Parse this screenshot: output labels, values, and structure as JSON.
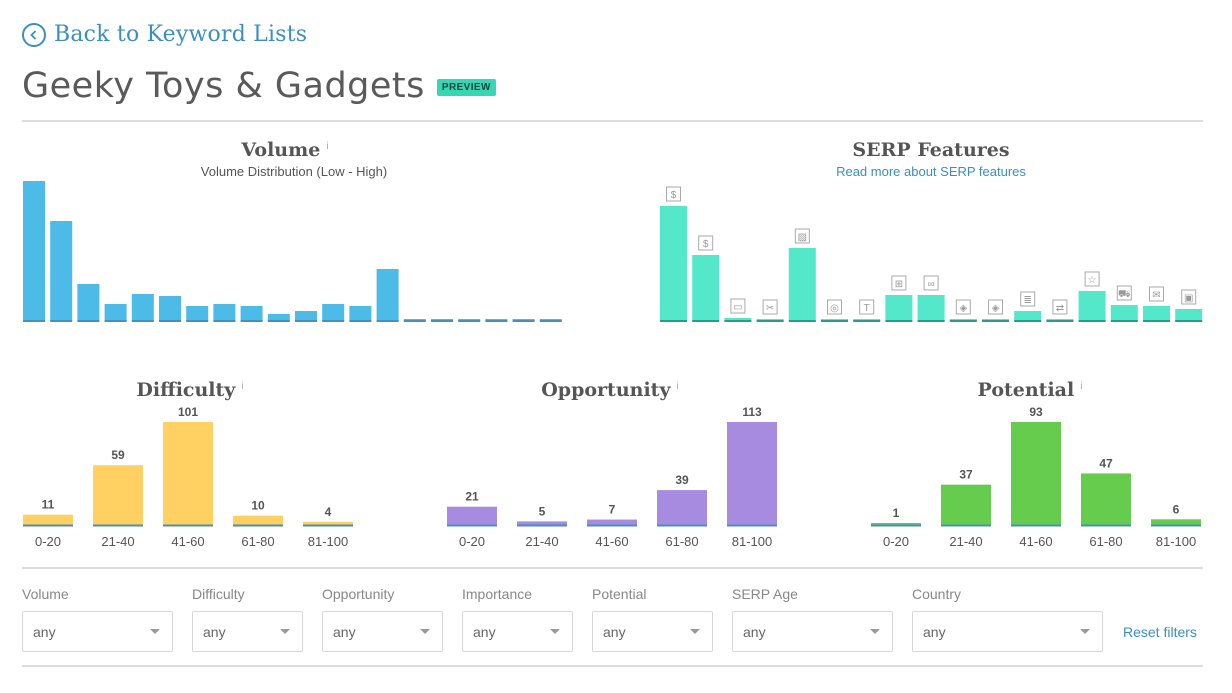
{
  "header": {
    "back_label": "Back to Keyword Lists",
    "title": "Geeky Toys & Gadgets",
    "badge": "PREVIEW"
  },
  "volume": {
    "title": "Volume",
    "info": "i",
    "subtitle": "Volume Distribution (Low - High)"
  },
  "serp": {
    "title": "SERP Features",
    "link": "Read more about SERP features"
  },
  "difficulty": {
    "title": "Difficulty",
    "info": "i"
  },
  "opportunity": {
    "title": "Opportunity",
    "info": "i"
  },
  "potential": {
    "title": "Potential",
    "info": "i"
  },
  "colors": {
    "volume": "#4dbbe8",
    "serp": "#52e8c9",
    "difficulty": "#ffd062",
    "opportunity": "#a78be0",
    "potential": "#66cc4d",
    "baseline": "#4a8fb7"
  },
  "chart_data": [
    {
      "id": "volume",
      "type": "bar",
      "title": "Volume",
      "subtitle": "Volume Distribution (Low - High)",
      "values": [
        140,
        100,
        37,
        17,
        27,
        25,
        15,
        17,
        15,
        7,
        10,
        17,
        15,
        52,
        0,
        0,
        0,
        0,
        0,
        0
      ]
    },
    {
      "id": "serp",
      "type": "bar",
      "title": "SERP Features",
      "values": [
        115,
        66,
        3,
        0,
        73,
        2,
        2,
        26,
        26,
        2,
        2,
        10,
        2,
        30,
        16,
        15,
        12
      ],
      "icons": [
        "dollar-ad-icon",
        "dollar-ad-icon",
        "briefcase-icon",
        "scissors-icon",
        "image-icon",
        "brain-icon",
        "text-box-icon",
        "grid-icon",
        "link-icon",
        "map-pin-icon",
        "map-pin-icon",
        "news-icon",
        "arrows-icon",
        "star-icon",
        "cart-icon",
        "chat-icon",
        "video-icon"
      ]
    },
    {
      "id": "difficulty",
      "type": "bar",
      "title": "Difficulty",
      "categories": [
        "0-20",
        "21-40",
        "41-60",
        "61-80",
        "81-100"
      ],
      "values": [
        11,
        59,
        101,
        10,
        4
      ]
    },
    {
      "id": "opportunity",
      "type": "bar",
      "title": "Opportunity",
      "categories": [
        "0-20",
        "21-40",
        "41-60",
        "61-80",
        "81-100"
      ],
      "values": [
        21,
        5,
        7,
        39,
        113
      ]
    },
    {
      "id": "potential",
      "type": "bar",
      "title": "Potential",
      "categories": [
        "0-20",
        "21-40",
        "41-60",
        "61-80",
        "81-100"
      ],
      "values": [
        1,
        37,
        93,
        47,
        6
      ]
    }
  ],
  "filters": [
    {
      "label": "Volume",
      "value": "any"
    },
    {
      "label": "Difficulty",
      "value": "any"
    },
    {
      "label": "Opportunity",
      "value": "any"
    },
    {
      "label": "Importance",
      "value": "any"
    },
    {
      "label": "Potential",
      "value": "any"
    },
    {
      "label": "SERP Age",
      "value": "any"
    },
    {
      "label": "Country",
      "value": "any"
    }
  ],
  "reset_label": "Reset filters"
}
